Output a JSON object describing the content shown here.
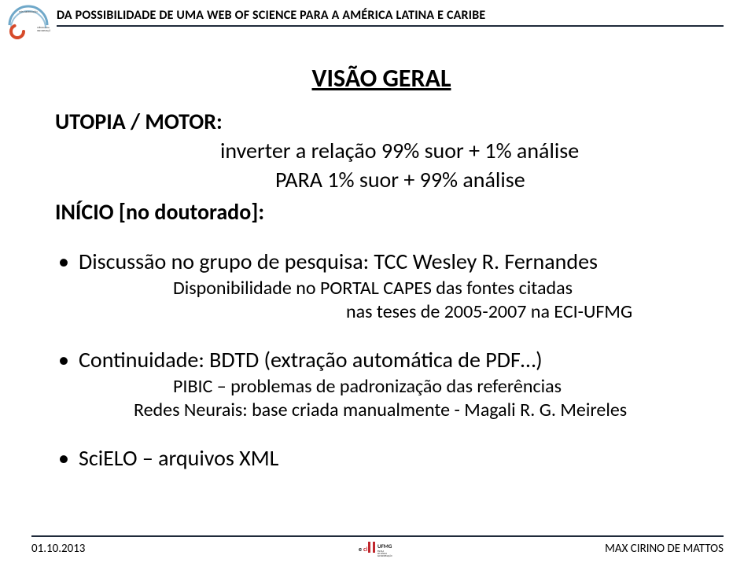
{
  "header": {
    "title": "DA POSSIBILIDADE DE UMA WEB OF SCIENCE PARA A AMÉRICA LATINA E CARIBE",
    "line_color": "#1f2a3a",
    "logo": {
      "text1": "PÓS-GRADUAÇÃO",
      "text2": "CIÊNCIA DA",
      "text3": "INFORMAÇÃO",
      "arc_color": "#6fa8c9",
      "c_color": "#d64a2a"
    }
  },
  "title": "VISÃO GERAL",
  "section1_label": "UTOPIA / MOTOR:",
  "section1_line1": "inverter a relação 99% suor + 1% análise",
  "section1_line2": "PARA 1% suor + 99% análise",
  "section2_label": "INÍCIO [no doutorado]:",
  "bullet1": {
    "text": "Discussão no grupo de pesquisa: TCC Wesley R. Fernandes",
    "sub1": "Disponibilidade no PORTAL CAPES das fontes citadas",
    "sub2": "nas teses de 2005-2007 na ECI-UFMG"
  },
  "bullet2": {
    "text": "Continuidade: BDTD (extração automática de PDF…)",
    "sub1": "PIBIC – problemas de padronização das referências",
    "sub2": "Redes Neurais: base criada manualmente - Magali R. G. Meireles"
  },
  "bullet3": {
    "text": "SciELO – arquivos XML"
  },
  "footer": {
    "left": "01.10.2013",
    "right": "MAX CIRINO DE MATTOS",
    "logo": {
      "text_top": "UFMG",
      "text_b_left": "ESCOLA",
      "text_b_mid": "DE CIÊNCIA",
      "text_b_right": "DA INFORMAÇÃO",
      "red": "#c1272d",
      "dark": "#222"
    }
  }
}
